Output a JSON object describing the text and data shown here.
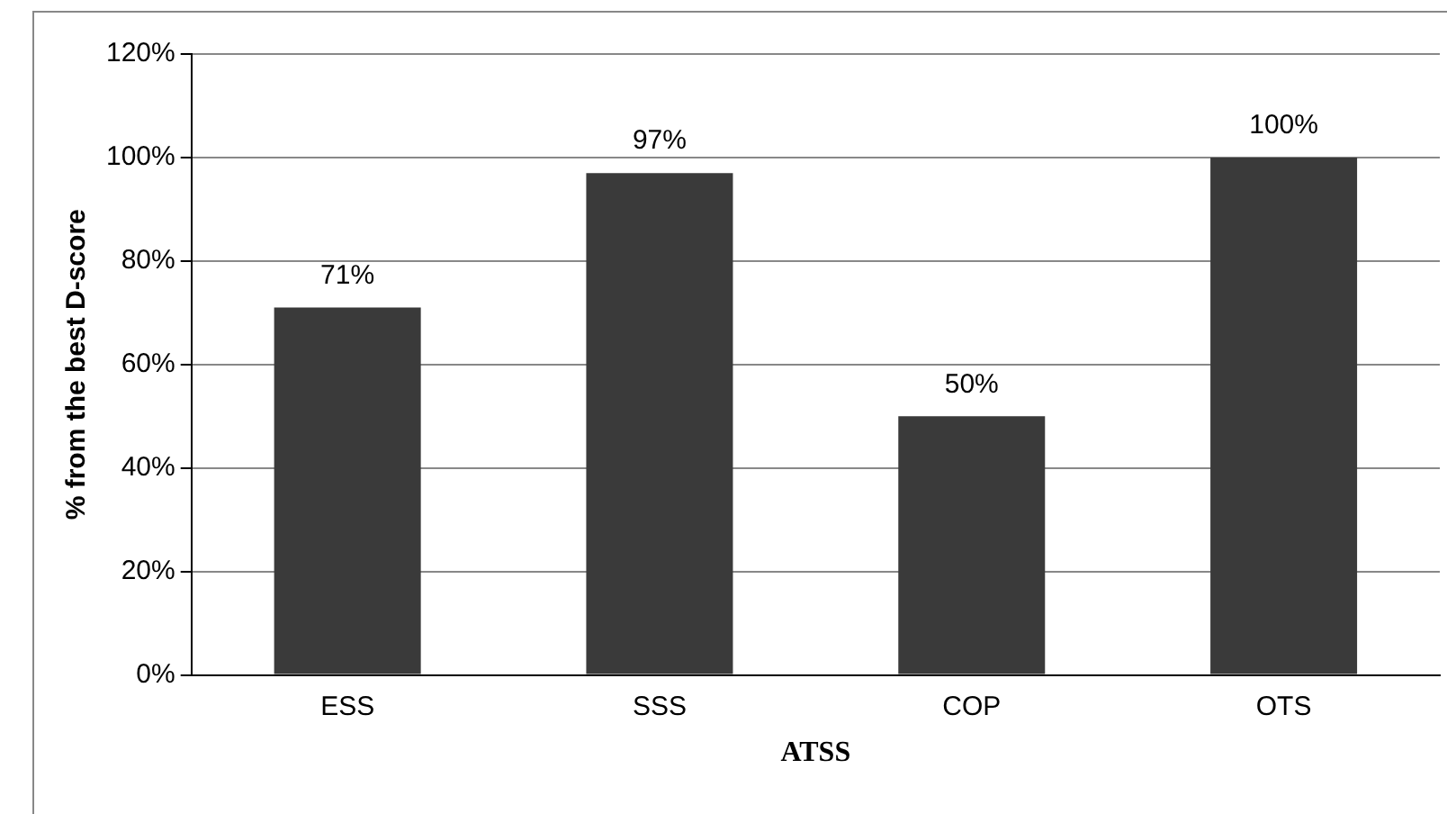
{
  "chart_data": {
    "type": "bar",
    "categories": [
      "ESS",
      "SSS",
      "COP",
      "OTS"
    ],
    "values": [
      71,
      97,
      50,
      100
    ],
    "value_labels": [
      "71%",
      "97%",
      "50%",
      "100%"
    ],
    "color": "#3a3a3a",
    "xlabel": "ATSS",
    "ylabel": "% from the best D-score",
    "ylim": [
      0,
      120
    ],
    "yticks": [
      {
        "value": 0,
        "label": "0%"
      },
      {
        "value": 20,
        "label": "20%"
      },
      {
        "value": 40,
        "label": "40%"
      },
      {
        "value": 60,
        "label": "60%"
      },
      {
        "value": 80,
        "label": "80%"
      },
      {
        "value": 100,
        "label": "100%"
      },
      {
        "value": 120,
        "label": "120%"
      }
    ],
    "grid": "y",
    "legend": false
  }
}
